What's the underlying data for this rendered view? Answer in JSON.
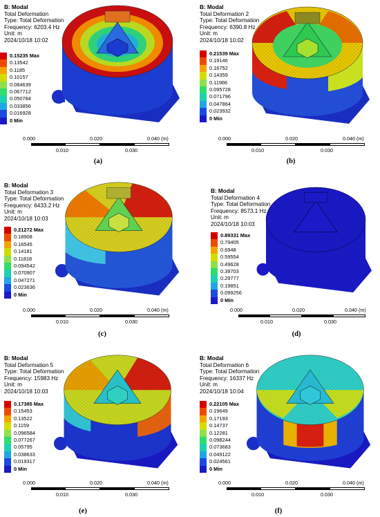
{
  "legend_colors": [
    "#d40000",
    "#ef4b00",
    "#f6a300",
    "#d3de00",
    "#8fe04a",
    "#2fde6a",
    "#1ed2b0",
    "#22a6e6",
    "#1c4be0",
    "#1a1ac8"
  ],
  "panels": [
    {
      "caption": "(a)",
      "title": "B: Modal",
      "subtitle": "Total Deformation",
      "type": "Type: Total Deformation",
      "frequency": "Frequency: 6203.4 Hz",
      "unit": "Unit: m",
      "date": "2024/10/18 10:02",
      "legend": [
        "0.15235 Max",
        "0.13542",
        "0.1185",
        "0.10157",
        "0.084639",
        "0.067712",
        "0.050784",
        "0.033856",
        "0.016928",
        "0 Min"
      ]
    },
    {
      "caption": "(b)",
      "title": "B: Modal",
      "subtitle": "Total Deformation 2",
      "type": "Type: Total Deformation",
      "frequency": "Frequency: 6390.8 Hz",
      "unit": "Unit: m",
      "date": "2024/10/18 10:02",
      "legend": [
        "0.21539 Max",
        "0.19146",
        "0.16752",
        "0.14359",
        "0.11966",
        "0.095728",
        "0.071796",
        "0.047864",
        "0.023932",
        "0 Min"
      ]
    },
    {
      "caption": "(c)",
      "title": "B: Modal",
      "subtitle": "Total Deformation 3",
      "type": "Type: Total Deformation",
      "frequency": "Frequency: 6433.2 Hz",
      "unit": "Unit: m",
      "date": "2024/10/18 10:03",
      "legend": [
        "0.21272 Max",
        "0.18908",
        "0.16545",
        "0.14181",
        "0.11818",
        "0.094542",
        "0.070907",
        "0.047271",
        "0.023636",
        "0 Min"
      ]
    },
    {
      "caption": "(d)",
      "title": "B: Modal",
      "subtitle": "Total Deformation 4",
      "type": "Type: Total Deformation",
      "frequency": "Frequency: 8573.1 Hz",
      "unit": "Unit: m",
      "date": "2024/10/18 10:03",
      "legend": [
        "0.89331 Max",
        "0.79405",
        "0.6948",
        "0.59554",
        "0.49628",
        "0.39703",
        "0.29777",
        "0.19851",
        "0.099256",
        "0 Min"
      ]
    },
    {
      "caption": "(e)",
      "title": "B: Modal",
      "subtitle": "Total Deformation 5",
      "type": "Type: Total Deformation",
      "frequency": "Frequency: 15983 Hz",
      "unit": "Unit: m",
      "date": "2024/10/18 10:03",
      "legend": [
        "0.17385 Max",
        "0.15453",
        "0.13522",
        "0.1159",
        "0.096584",
        "0.077267",
        "0.05795",
        "0.038633",
        "0.019317",
        "0 Min"
      ]
    },
    {
      "caption": "(f)",
      "title": "B: Modal",
      "subtitle": "Total Deformation 6",
      "type": "Type: Total Deformation",
      "frequency": "Frequency: 16337 Hz",
      "unit": "Unit: m",
      "date": "2024/10/18 10:04",
      "legend": [
        "0.22105 Max",
        "0.19649",
        "0.17193",
        "0.14737",
        "0.12281",
        "0.098244",
        "0.073683",
        "0.049122",
        "0.024561",
        "0 Min"
      ]
    }
  ],
  "scale_bar": {
    "top": [
      "0.000",
      "0.020",
      "0.040 (m)"
    ],
    "bottom": [
      "0.010",
      "0.030"
    ]
  }
}
